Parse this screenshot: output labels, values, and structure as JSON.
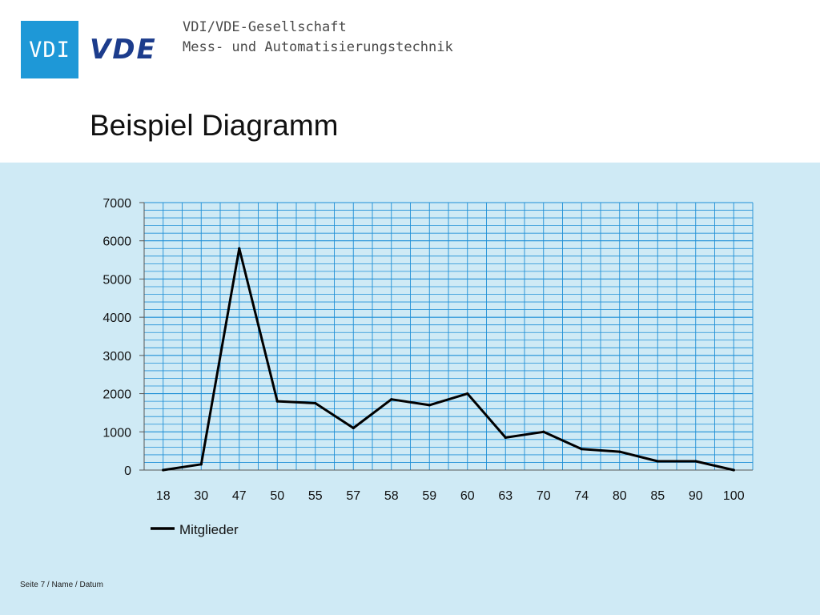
{
  "header": {
    "vdi_logo_text": "VDI",
    "vde_logo_text": "VDE",
    "org_line1": "VDI/VDE-Gesellschaft",
    "org_line2": "Mess- und Automatisierungstechnik"
  },
  "page_title": "Beispiel Diagramm",
  "footer": "Seite 7 / Name / Datum",
  "colors": {
    "vdi_blue": "#1e98d7",
    "vde_navy": "#1c3c8c",
    "panel_background": "#cfeaf5",
    "grid_lines": "#1e8fd6",
    "series_line": "#000000"
  },
  "chart_data": {
    "type": "line",
    "categories": [
      "18",
      "30",
      "47",
      "50",
      "55",
      "57",
      "58",
      "59",
      "60",
      "63",
      "70",
      "74",
      "80",
      "85",
      "90",
      "100"
    ],
    "series": [
      {
        "name": "Mitglieder",
        "values": [
          0,
          150,
          5800,
          1800,
          1750,
          1100,
          1850,
          1700,
          2000,
          850,
          1000,
          550,
          480,
          230,
          230,
          0
        ]
      }
    ],
    "ylim": [
      0,
      7000
    ],
    "yticks": [
      "0",
      "1000",
      "2000",
      "3000",
      "4000",
      "5000",
      "6000",
      "7000"
    ],
    "grid": true,
    "legend_position": "bottom-left"
  }
}
